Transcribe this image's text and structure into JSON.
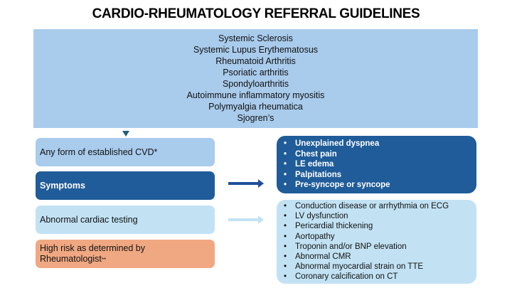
{
  "title": "CARDIO-RHEUMATOLOGY REFERRAL GUIDELINES",
  "conditions": [
    "Systemic Sclerosis",
    "Systemic Lupus Erythematosus",
    "Rheumatoid Arthritis",
    "Psoriatic arthritis",
    "Spondyloarthritis",
    "Autoimmune inflammatory myositis",
    "Polymyalgia rheumatica",
    "Sjogren’s"
  ],
  "criteria": {
    "established_cvd": "Any form of established CVD*",
    "symptoms": "Symptoms",
    "abnormal_testing": "Abnormal cardiac testing",
    "high_risk_line1": "High risk as determined by",
    "high_risk_line2": "Rheumatologist",
    "high_risk_mark": "**"
  },
  "symptoms_list": [
    "Unexplained dyspnea",
    "Chest pain",
    "LE edema",
    "Palpitations",
    "Pre-syncope or syncope"
  ],
  "testing_list": [
    "Conduction disease or arrhythmia on ECG",
    "LV dysfunction",
    "Pericardial thickening",
    "Aortopathy",
    "Troponin and/or BNP elevation",
    "Abnormal CMR",
    "Abnormal myocardial strain on TTE",
    "Coronary calcification on CT"
  ],
  "colors": {
    "light_blue": "#a9cbec",
    "dark_blue": "#1f5c99",
    "pale_blue": "#c2e2f4",
    "orange": "#f0a882"
  }
}
